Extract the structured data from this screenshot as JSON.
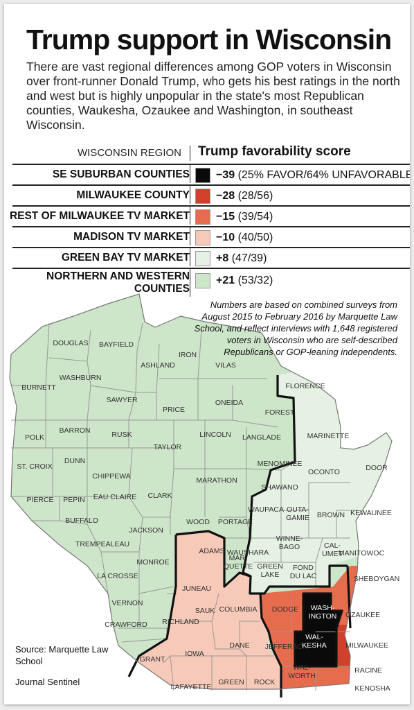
{
  "title": "Trump support in Wisconsin",
  "intro": "There are vast regional differences among GOP voters in Wisconsin over front-runner Donald Trump, who gets his best ratings in the north and west but is highly unpopular in the state's most Republican counties, Waukesha, Ozaukee and Washington, in southeast Wisconsin.",
  "legend": {
    "region_header": "WISCONSIN REGION",
    "score_header": "Trump favorability score",
    "rows": [
      {
        "name": "SE SUBURBAN COUNTIES",
        "score": "−39",
        "detail": "(25% FAVOR/64% UNFAVORABLE)",
        "color": "#0a0a0a"
      },
      {
        "name": "MILWAUKEE COUNTY",
        "score": "−28",
        "detail": "(28/56)",
        "color": "#d1402a"
      },
      {
        "name": "REST OF MILWAUKEE TV MARKET",
        "score": "−15",
        "detail": "(39/54)",
        "color": "#e66c4e"
      },
      {
        "name": "MADISON TV MARKET",
        "score": "−10",
        "detail": "(40/50)",
        "color": "#f7c9b8"
      },
      {
        "name": "GREEN BAY TV MARKET",
        "score": "+8",
        "detail": "(47/39)",
        "color": "#e5f1e2"
      },
      {
        "name": "NORTHERN AND WESTERN COUNTIES",
        "score": "+21",
        "detail": "(53/32)",
        "color": "#cde5c8"
      }
    ]
  },
  "note": "Numbers are based on combined surveys from August 2015 to February 2016 by Marquette Law School, and reflect interviews with 1,648 registered voters in Wisconsin who are self-described Republicans or GOP-leaning independents.",
  "source": "Source: Marquette Law School",
  "credit": "Journal Sentinel",
  "map": {
    "counties": {
      "douglas": "DOUGLAS",
      "bayfield": "BAYFIELD",
      "ashland": "ASHLAND",
      "iron": "IRON",
      "vilas": "VILAS",
      "burnett": "BURNETT",
      "washburn": "WASHBURN",
      "sawyer": "SAWYER",
      "price": "PRICE",
      "oneida": "ONEIDA",
      "forest": "FOREST",
      "florence": "FLORENCE",
      "marinette": "MARINETTE",
      "polk": "POLK",
      "barron": "BARRON",
      "rusk": "RUSK",
      "lincoln": "LINCOLN",
      "langlade": "LANGLADE",
      "taylor": "TAYLOR",
      "menominee": "MENOMINEE",
      "oconto": "OCONTO",
      "door": "DOOR",
      "st_croix": "ST. CROIX",
      "dunn": "DUNN",
      "chippewa": "CHIPPEWA",
      "marathon": "MARATHON",
      "shawano": "SHAWANO",
      "pierce": "PIERCE",
      "pepin": "PEPIN",
      "eau_claire": "EAU CLAIRE",
      "clark": "CLARK",
      "waupaca": "WAUPACA",
      "outagamie": "OUTA-|GAMIE",
      "brown": "BROWN",
      "kewaunee": "KEWAUNEE",
      "buffalo": "BUFFALO",
      "jackson": "JACKSON",
      "wood": "WOOD",
      "portage": "PORTAGE",
      "trempealeau": "TREMPEALEAU",
      "waushara": "WAUSHARA",
      "winnebago": "WINNE-|BAGO",
      "calumet": "CAL-|UMET",
      "manitowoc": "MANITOWOC",
      "monroe": "MONROE",
      "adams": "ADAMS",
      "marquette": "MAR-|QUETTE",
      "green_lake": "GREEN|LAKE",
      "fond_du_lac": "FOND|DU LAC",
      "sheboygan": "SHEBOYGAN",
      "la_crosse": "LA CROSSE",
      "juneau": "JUNEAU",
      "vernon": "VERNON",
      "sauk": "SAUK",
      "columbia": "COLUMBIA",
      "dodge": "DODGE",
      "washington": "WASH-|INGTON",
      "ozaukee": "OZAUKEE",
      "crawford": "CRAWFORD",
      "richland": "RICHLAND",
      "jefferson": "JEFFERSON",
      "waukesha": "WAL-|KESHA",
      "milwaukee": "MILWAUKEE",
      "grant": "GRANT",
      "iowa": "IOWA",
      "dane": "DANE",
      "lafayette": "LAFAYETTE",
      "green": "GREEN",
      "rock": "ROCK",
      "walworth": "WAL-|WORTH",
      "racine": "RACINE",
      "kenosha": "KENOSHA"
    }
  }
}
